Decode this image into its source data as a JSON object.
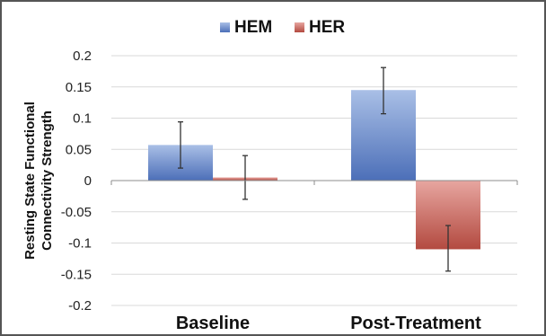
{
  "chart_data": {
    "type": "bar",
    "title": "",
    "xlabel": "",
    "ylabel_lines": [
      "Resting State Functional",
      "Connectivity Strength"
    ],
    "categories": [
      "Baseline",
      "Post-Treatment"
    ],
    "series": [
      {
        "name": "HEM",
        "values": [
          0.057,
          0.145
        ],
        "error_low": [
          0.02,
          0.107
        ],
        "error_high": [
          0.094,
          0.181
        ],
        "color_top": "#a9bfe6",
        "color_bottom": "#4c6fb8"
      },
      {
        "name": "HER",
        "values": [
          0.005,
          -0.11
        ],
        "error_low": [
          -0.03,
          -0.145
        ],
        "error_high": [
          0.04,
          -0.072
        ],
        "color_top": "#e7a6a0",
        "color_bottom": "#b34a40"
      }
    ],
    "ylim": [
      -0.2,
      0.2
    ],
    "yticks": [
      0.2,
      0.15,
      0.1,
      0.05,
      0,
      -0.05,
      -0.1,
      -0.15,
      -0.2
    ],
    "ytick_labels": [
      "0.2",
      "0.15",
      "0.1",
      "0.05",
      "0",
      "-0.05",
      "-0.1",
      "-0.15",
      "-0.2"
    ],
    "grid": true,
    "legend_position": "top-center"
  }
}
